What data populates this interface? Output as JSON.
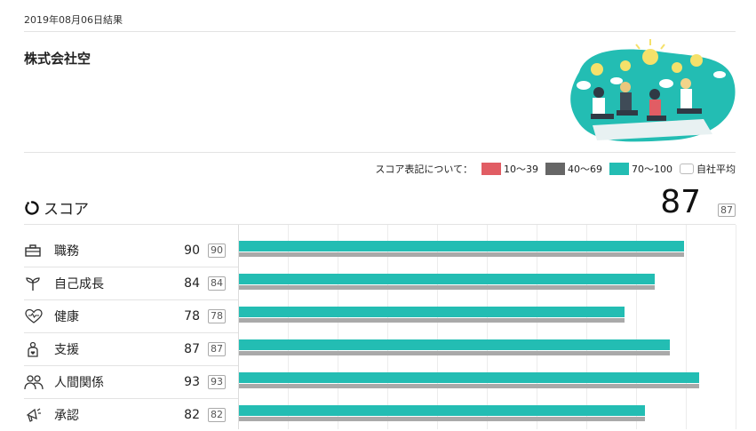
{
  "header": {
    "date": "2019年08月06日結果",
    "company": "株式会社空"
  },
  "legend": {
    "title": "スコア表記について：",
    "items": [
      {
        "label": "10〜39",
        "color": "#e15d64"
      },
      {
        "label": "40〜69",
        "color": "#666666"
      },
      {
        "label": "70〜100",
        "color": "#23bdb3"
      },
      {
        "label": "自社平均",
        "color": "#ffffff"
      }
    ]
  },
  "score": {
    "title": "スコア",
    "total": "87",
    "average": "87"
  },
  "categories": [
    {
      "label": "職務",
      "value": 90,
      "average": 90,
      "icon": "briefcase-icon"
    },
    {
      "label": "自己成長",
      "value": 84,
      "average": 84,
      "icon": "sprout-icon"
    },
    {
      "label": "健康",
      "value": 78,
      "average": 78,
      "icon": "heartbeat-icon"
    },
    {
      "label": "支援",
      "value": 87,
      "average": 87,
      "icon": "support-icon"
    },
    {
      "label": "人間関係",
      "value": 93,
      "average": 93,
      "icon": "people-icon"
    },
    {
      "label": "承認",
      "value": 82,
      "average": 82,
      "icon": "megaphone-icon"
    }
  ],
  "chart_data": {
    "type": "bar",
    "orientation": "horizontal",
    "categories": [
      "職務",
      "自己成長",
      "健康",
      "支援",
      "人間関係",
      "承認"
    ],
    "series": [
      {
        "values": [
          90,
          84,
          78,
          87,
          93,
          82
        ],
        "color": "#23bdb3"
      },
      {
        "values": [
          90,
          84,
          78,
          87,
          93,
          82
        ],
        "color": "#a9a9a9"
      }
    ],
    "xlim": [
      0,
      100
    ],
    "grid": true
  }
}
